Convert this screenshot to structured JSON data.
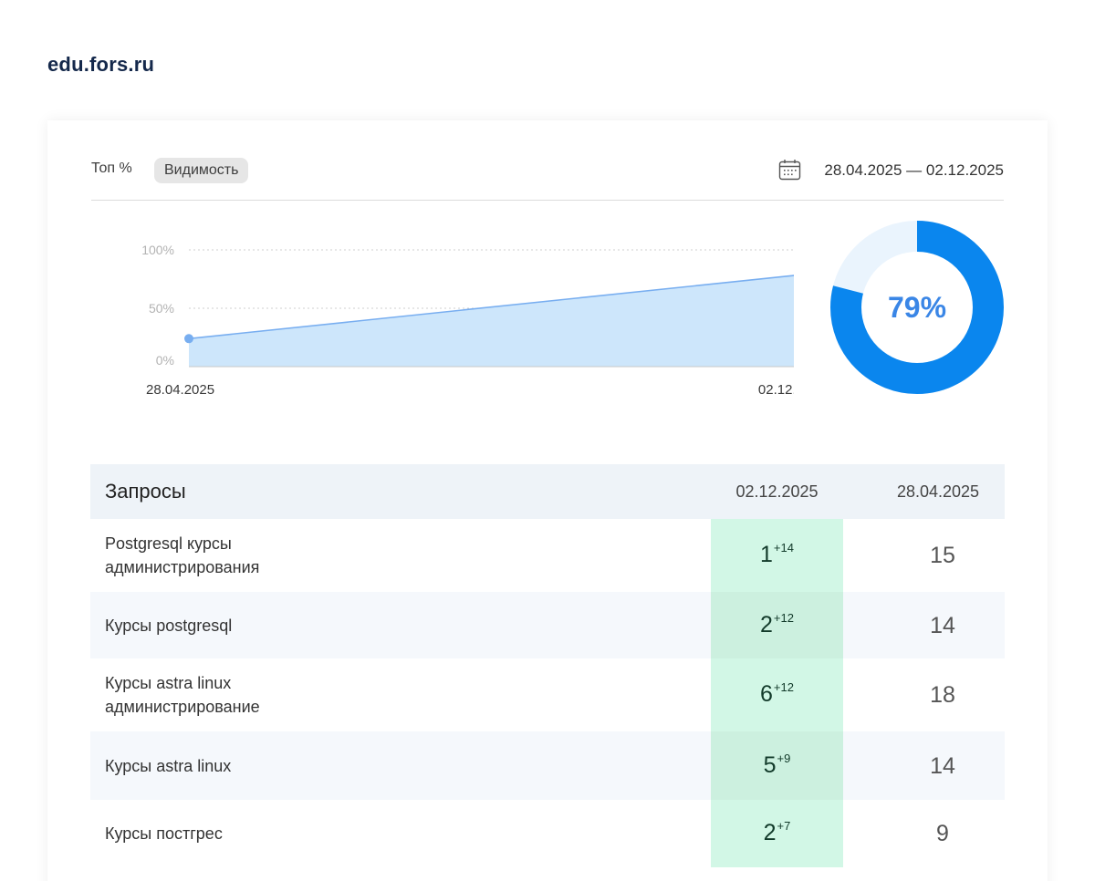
{
  "site": {
    "title": "edu.fors.ru"
  },
  "toolbar": {
    "top_label": "Топ %",
    "visibility_label": "Видимость",
    "date_range": "28.04.2025 — 02.12.2025"
  },
  "chart_data": {
    "type": "area",
    "x": [
      "28.04.2025",
      "02.12.2025"
    ],
    "series": [
      {
        "values": [
          24,
          81
        ]
      }
    ],
    "y_ticks": [
      "100%",
      "50%",
      "0%"
    ],
    "ylim": [
      0,
      100
    ],
    "grid": true
  },
  "donut": {
    "value": 79,
    "label": "79%",
    "color": "#0a86ee",
    "track_color": "#eaf4fd",
    "text_color": "#3a86e6"
  },
  "table": {
    "header": {
      "query": "Запросы",
      "col_current": "02.12.2025",
      "col_previous": "28.04.2025"
    },
    "rows": [
      {
        "query_lines": [
          "Postgresql курсы",
          "администрирования"
        ],
        "current": "1",
        "delta": "+14",
        "previous": "15"
      },
      {
        "query_lines": [
          "Курсы postgresql"
        ],
        "current": "2",
        "delta": "+12",
        "previous": "14"
      },
      {
        "query_lines": [
          "Курсы astra linux",
          "администрирование"
        ],
        "current": "6",
        "delta": "+12",
        "previous": "18"
      },
      {
        "query_lines": [
          "Курсы astra linux"
        ],
        "current": "5",
        "delta": "+9",
        "previous": "14"
      },
      {
        "query_lines": [
          "Курсы постгрес"
        ],
        "current": "2",
        "delta": "+7",
        "previous": "9"
      }
    ]
  }
}
